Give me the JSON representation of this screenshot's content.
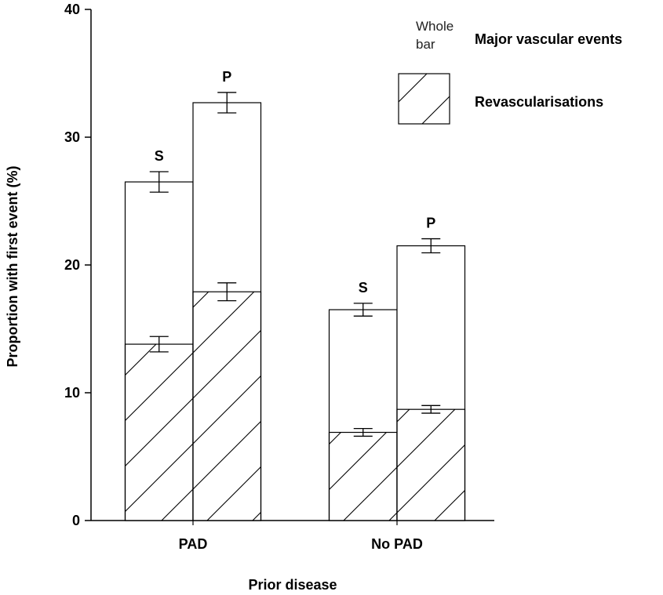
{
  "chart_data": {
    "type": "bar",
    "ylabel": "Proportion with first event (%)",
    "xlabel": "Prior disease",
    "categories": [
      "PAD",
      "No PAD"
    ],
    "subgroups": [
      "S",
      "P"
    ],
    "series": [
      {
        "name": "Major vascular events",
        "key_label": "Whole bar",
        "color": "#ffffff",
        "values": [
          [
            26.5,
            32.7
          ],
          [
            16.5,
            21.5
          ]
        ],
        "errors": [
          [
            0.8,
            0.8
          ],
          [
            0.5,
            0.55
          ]
        ]
      },
      {
        "name": "Revascularisations",
        "color": "#000000",
        "hatch": true,
        "values": [
          [
            13.8,
            17.9
          ],
          [
            6.9,
            8.7
          ]
        ],
        "errors": [
          [
            0.6,
            0.7
          ],
          [
            0.3,
            0.3
          ]
        ]
      }
    ],
    "ylim": [
      0,
      40
    ],
    "yticks": [
      0,
      10,
      20,
      30,
      40
    ]
  }
}
